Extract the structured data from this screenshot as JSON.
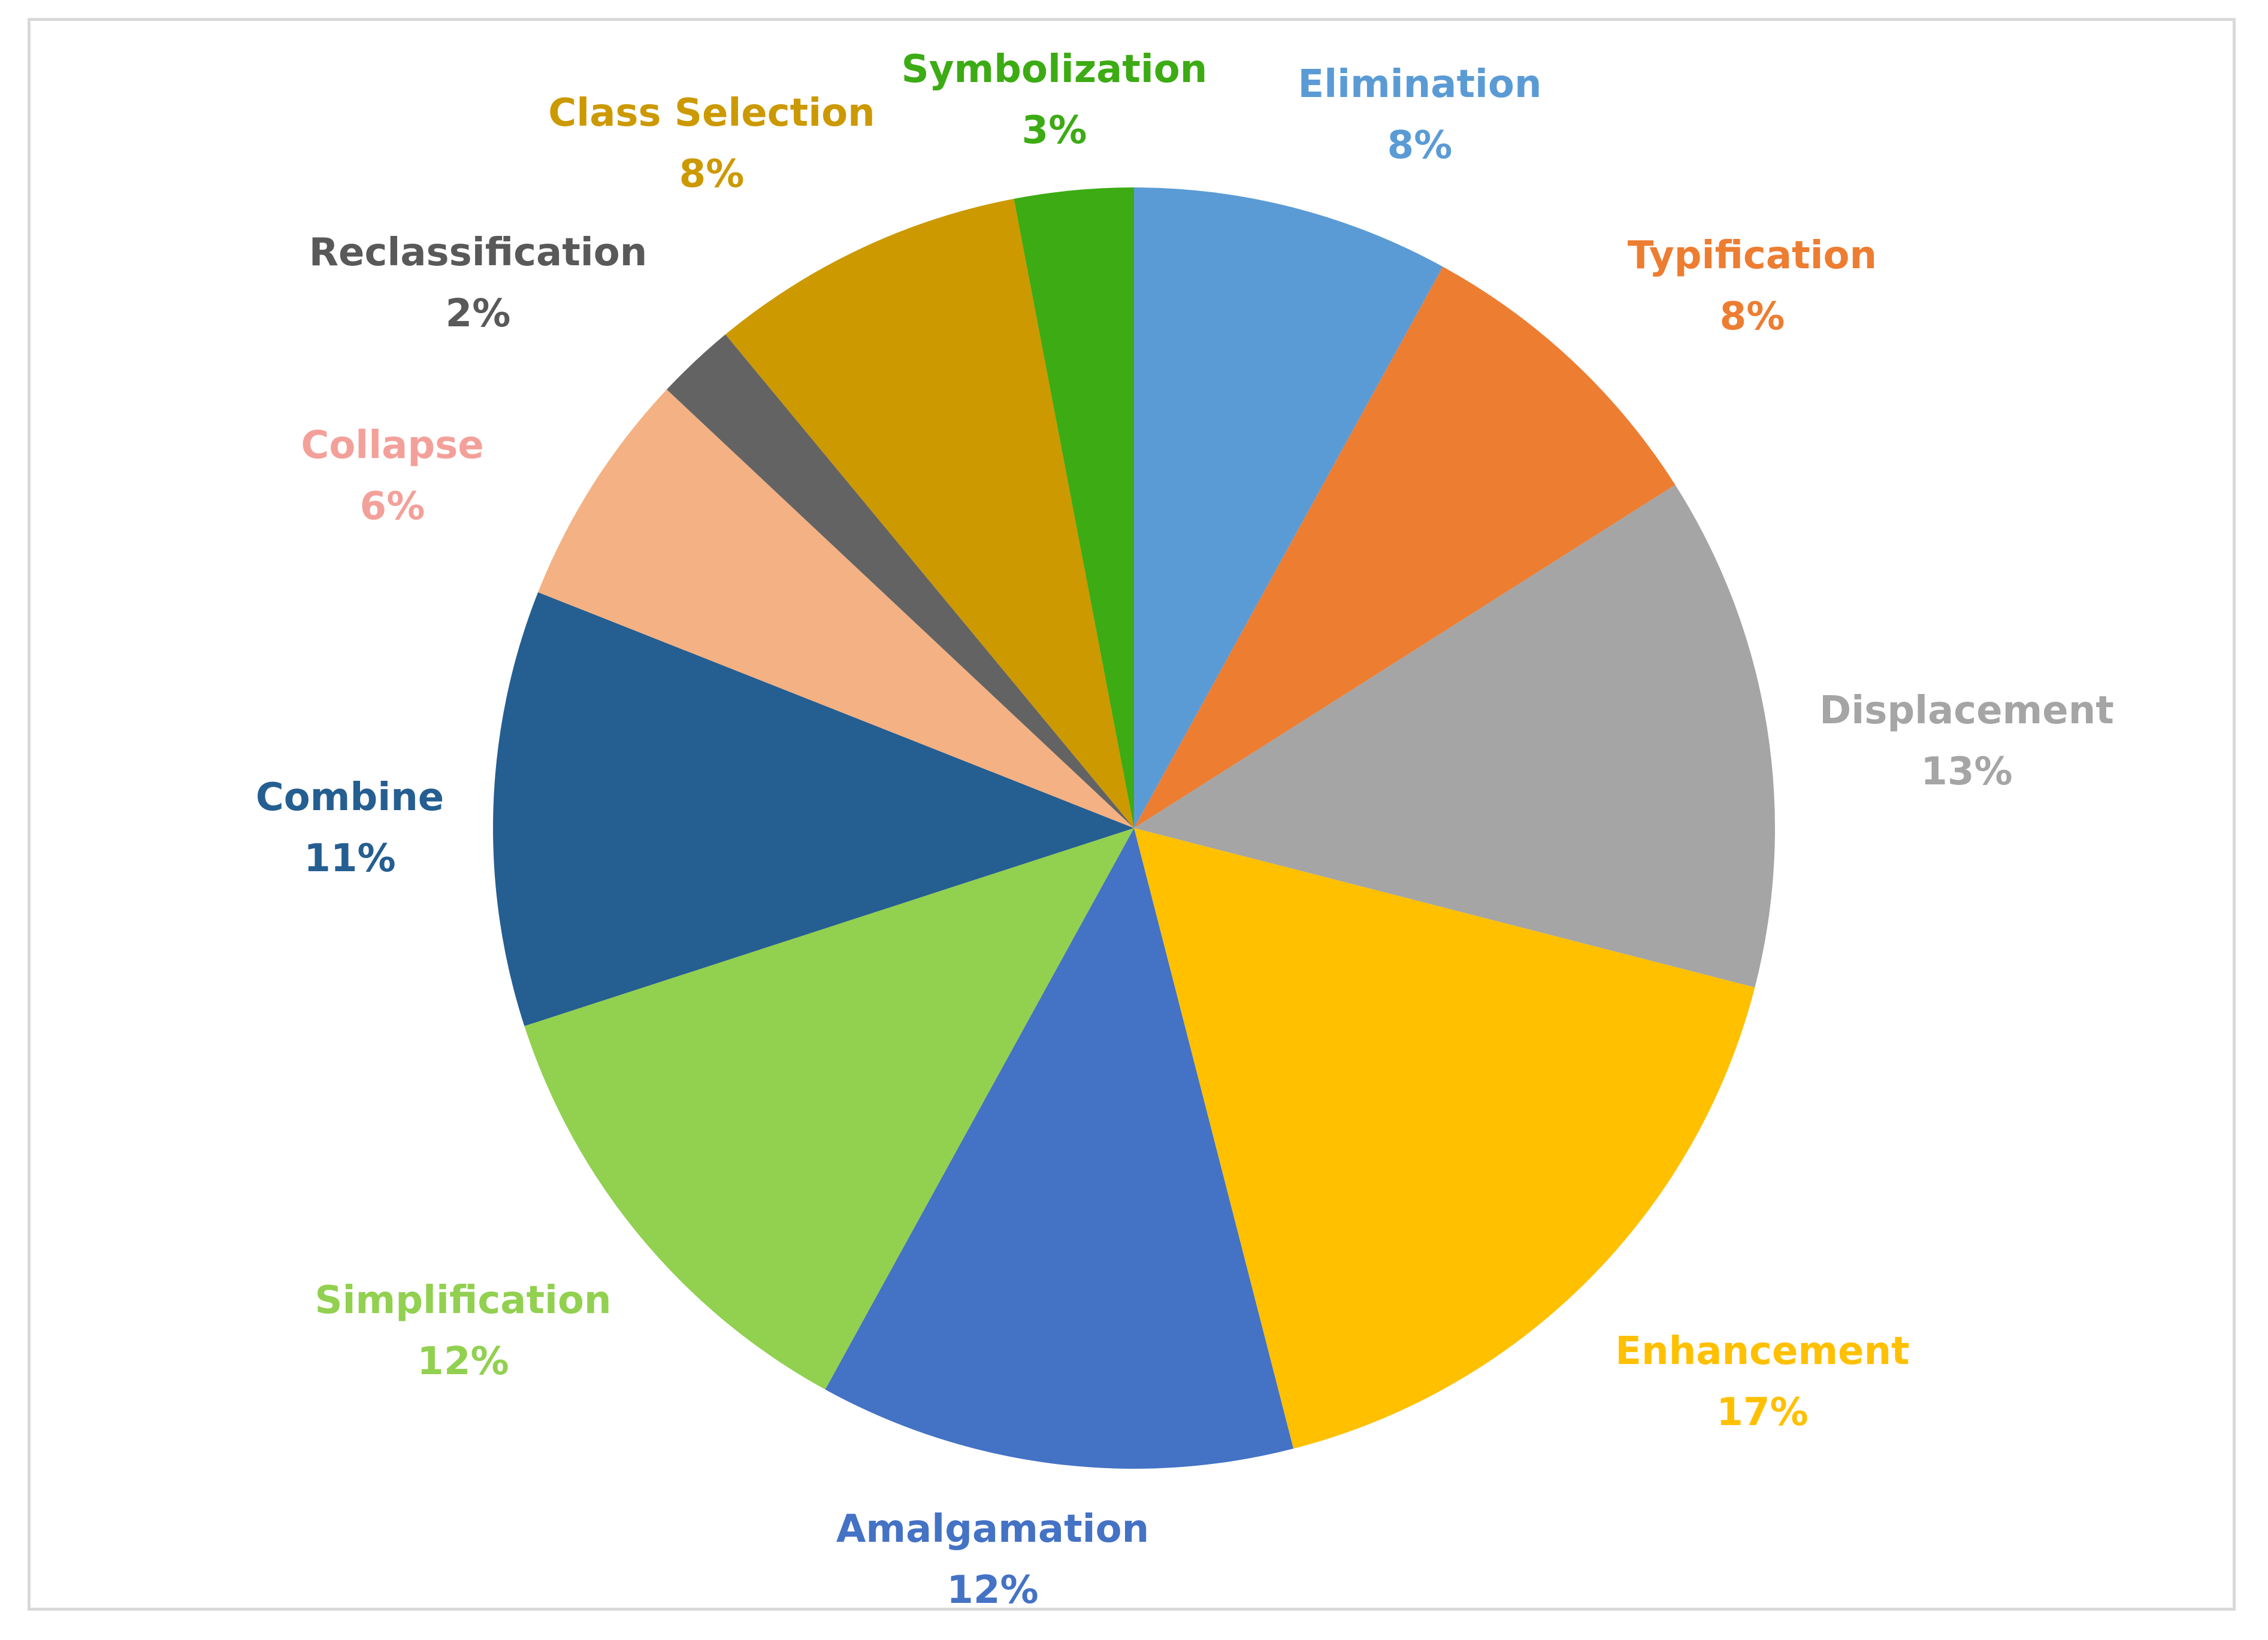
{
  "chart_data": {
    "type": "pie",
    "slices": [
      {
        "label": "Elimination",
        "value": 8,
        "display": "8%",
        "color": "#5b9bd5"
      },
      {
        "label": "Typification",
        "value": 8,
        "display": "8%",
        "color": "#ed7d31"
      },
      {
        "label": "Displacement",
        "value": 13,
        "display": "13%",
        "color": "#a5a5a5"
      },
      {
        "label": "Enhancement",
        "value": 17,
        "display": "17%",
        "color": "#ffc000"
      },
      {
        "label": "Amalgamation",
        "value": 12,
        "display": "12%",
        "color": "#4472c4"
      },
      {
        "label": "Simplification",
        "value": 12,
        "display": "12%",
        "color": "#92d050"
      },
      {
        "label": "Combine",
        "value": 11,
        "display": "11%",
        "color": "#255e91"
      },
      {
        "label": "Collapse",
        "value": 6,
        "display": "6%",
        "color": "#f4b183"
      },
      {
        "label": "Reclassification",
        "value": 2,
        "display": "2%",
        "color": "#636363"
      },
      {
        "label": "Class Selection",
        "value": 8,
        "display": "8%",
        "color": "#cc9900"
      },
      {
        "label": "Symbolization",
        "value": 3,
        "display": "3%",
        "color": "#3cab14"
      }
    ],
    "label_colors": {
      "Elimination": "#5b9bd5",
      "Typification": "#ed7d31",
      "Displacement": "#a5a5a5",
      "Enhancement": "#ffc000",
      "Amalgamation": "#4472c4",
      "Simplification": "#92d050",
      "Combine": "#255e91",
      "Collapse": "#f4a09a",
      "Reclassification": "#595959",
      "Class Selection": "#cc9900",
      "Symbolization": "#3cab14"
    },
    "start_angle": "12 o'clock",
    "direction": "clockwise",
    "legend": "none"
  }
}
